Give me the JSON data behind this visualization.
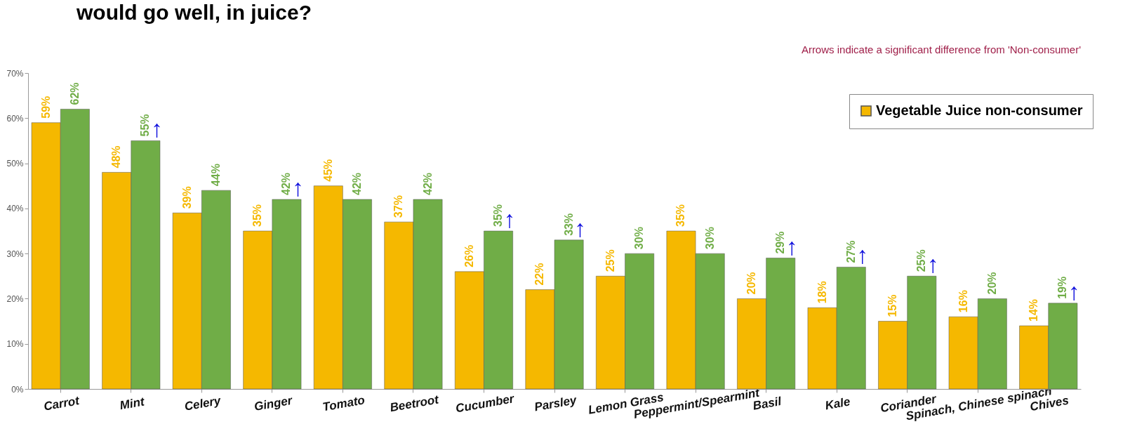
{
  "chart_data": {
    "type": "bar",
    "title": "would go well, in juice?",
    "categories": [
      "Carrot",
      "Mint",
      "Celery",
      "Ginger",
      "Tomato",
      "Beetroot",
      "Cucumber",
      "Parsley",
      "Lemon Grass",
      "Peppermint/Spearmint",
      "Basil",
      "Kale",
      "Coriander",
      "Spinach, Chinese spinach",
      "Chives"
    ],
    "series": [
      {
        "name": "Vegetable Juice non-consumer",
        "color": "#f5b800",
        "values": [
          59,
          48,
          39,
          35,
          45,
          37,
          26,
          22,
          25,
          35,
          20,
          18,
          15,
          16,
          14
        ],
        "value_labels": [
          "59%",
          "48%",
          "39%",
          "35%",
          "45%",
          "37%",
          "26%",
          "22%",
          "25%",
          "35%",
          "20%",
          "18%",
          "15%",
          "16%",
          "14%"
        ]
      },
      {
        "color": "#70ad47",
        "values": [
          62,
          55,
          44,
          42,
          42,
          42,
          35,
          33,
          30,
          30,
          29,
          27,
          25,
          20,
          19
        ],
        "value_labels": [
          "62%",
          "55%",
          "44%",
          "42%",
          "42%",
          "42%",
          "35%",
          "33%",
          "30%",
          "30%",
          "29%",
          "27%",
          "25%",
          "20%",
          "19%"
        ]
      }
    ],
    "ylim": [
      0,
      70
    ],
    "yticks": [
      {
        "value": 0,
        "label": "0%"
      },
      {
        "value": 10,
        "label": "10%"
      },
      {
        "value": 20,
        "label": "20%"
      },
      {
        "value": 30,
        "label": "30%"
      },
      {
        "value": 40,
        "label": "40%"
      },
      {
        "value": 50,
        "label": "50%"
      },
      {
        "value": 60,
        "label": "60%"
      },
      {
        "value": 70,
        "label": "70%"
      }
    ],
    "grid": false,
    "legend": "top right",
    "annotations": [
      "Arrows indicate a significant difference from 'Non-consumer'",
      {
        "text": "↑",
        "x": "Mint",
        "y": 55
      },
      {
        "text": "↑",
        "x": "Ginger",
        "y": 42
      },
      {
        "text": "↑",
        "x": "Cucumber",
        "y": 35
      },
      {
        "text": "↑",
        "x": "Parsley",
        "y": 33
      },
      {
        "text": "↑",
        "x": "Basil",
        "y": 29
      },
      {
        "text": "↑",
        "x": "Kale",
        "y": 27
      },
      {
        "text": "↑",
        "x": "Coriander",
        "y": 25
      },
      {
        "text": "↑",
        "x": "Chives",
        "y": 19
      }
    ]
  }
}
